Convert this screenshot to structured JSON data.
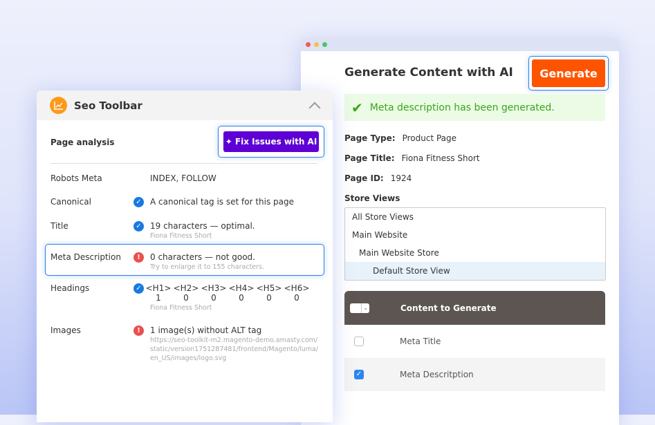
{
  "generate_window": {
    "title": "Generate Content with AI",
    "generate_label": "Generate",
    "success_message": "Meta description has been generated.",
    "fields": [
      {
        "label": "Page Type:",
        "value": "Product Page"
      },
      {
        "label": "Page Title:",
        "value": "Fiona Fitness Short"
      },
      {
        "label": "Page ID:",
        "value": "1924"
      }
    ],
    "store_views_label": "Store Views",
    "store_views": [
      {
        "label": "All Store Views",
        "selected": false
      },
      {
        "label": "Main Website",
        "selected": false
      },
      {
        "label": "Main Website Store",
        "selected": false
      },
      {
        "label": "Default Store View",
        "selected": true
      }
    ],
    "table": {
      "header": "Content to Generate",
      "rows": [
        {
          "label": "Meta Title",
          "checked": false
        },
        {
          "label": "Meta Descritption",
          "checked": true
        }
      ]
    }
  },
  "seo_toolbar": {
    "title": "Seo Toolbar",
    "section": "Page analysis",
    "fix_label": "Fix Issues with AI",
    "rows": [
      {
        "label": "Robots Meta",
        "value": "INDEX, FOLLOW"
      },
      {
        "label": "Canonical",
        "status": "good",
        "value": "A canonical tag is set for this page"
      },
      {
        "label": "Title",
        "status": "good",
        "value": "19 characters — optimal.",
        "sub": "Fiona Fitness Short"
      },
      {
        "label": "Meta Description",
        "status": "bad",
        "value": "0 characters — not good.",
        "sub": "Try to enlarge it to 155 characters."
      },
      {
        "label": "Headings",
        "status": "good",
        "headings": [
          "<H1>",
          "<H2>",
          "<H3>",
          "<H4>",
          "<H5>",
          "<H6>"
        ],
        "counts": [
          "1",
          "0",
          "0",
          "0",
          "0",
          "0"
        ],
        "sub": "Fiona Fitness Short"
      },
      {
        "label": "Images",
        "status": "bad",
        "value": "1 image(s) without ALT tag",
        "sub": "https://seo-toolkit-m2.magento-demo.amasty.com/static/version1751287481/frontend/Magento/luma/en_US/images/logo.svg"
      }
    ]
  },
  "colors": {
    "generate": "#fe5400",
    "fix": "#5e00d4",
    "success": "#3aa41c",
    "good": "#1a79e0",
    "bad": "#e9504e"
  }
}
